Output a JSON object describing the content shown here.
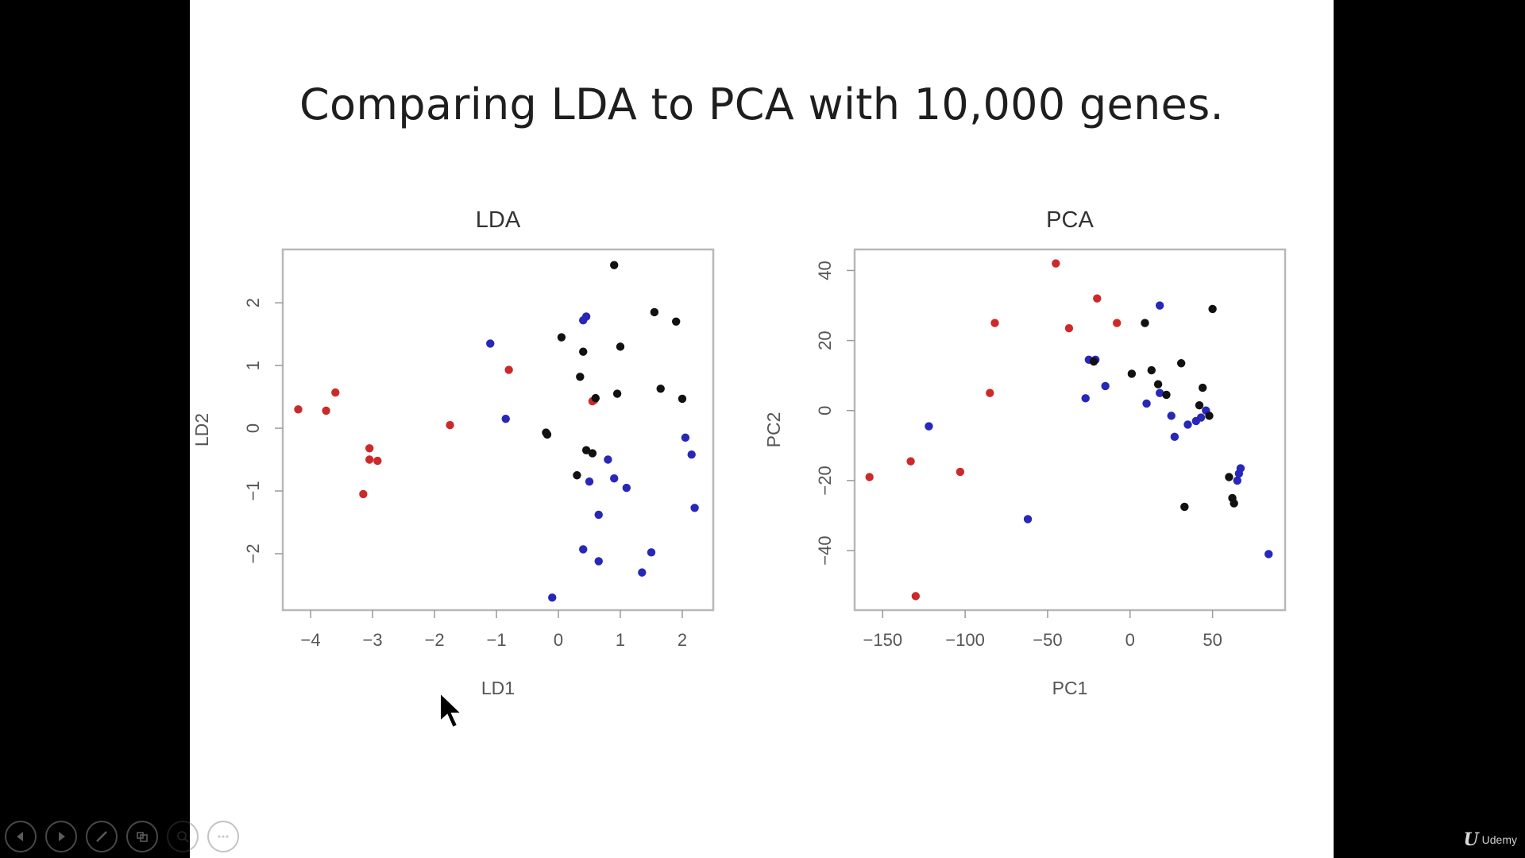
{
  "slide": {
    "title": "Comparing LDA to PCA with 10,000 genes."
  },
  "colors": {
    "red": "#cc2a2a",
    "blue": "#2727b8",
    "black": "#111111",
    "frame": "#b8b8b8",
    "background": "#000000",
    "slide": "#ffffff"
  },
  "toolbar": {
    "buttons": [
      {
        "icon": "previous-icon"
      },
      {
        "icon": "next-icon"
      },
      {
        "icon": "pen-icon"
      },
      {
        "icon": "slides-icon"
      },
      {
        "icon": "zoom-icon"
      },
      {
        "icon": "more-icon"
      }
    ]
  },
  "brand": {
    "glyph": "U",
    "label": "Udemy"
  },
  "chart_data": [
    {
      "type": "scatter",
      "title": "LDA",
      "xlabel": "LD1",
      "ylabel": "LD2",
      "xlim": [
        -4.45,
        2.5
      ],
      "ylim": [
        -2.9,
        2.85
      ],
      "xticks": [
        -4,
        -3,
        -2,
        -1,
        0,
        1,
        2
      ],
      "yticks": [
        -2,
        -1,
        0,
        1,
        2
      ],
      "grid": false,
      "series": [
        {
          "color": "red",
          "points": [
            [
              -4.2,
              0.3
            ],
            [
              -3.75,
              0.28
            ],
            [
              -3.6,
              0.57
            ],
            [
              -3.05,
              -0.32
            ],
            [
              -3.05,
              -0.5
            ],
            [
              -2.92,
              -0.52
            ],
            [
              -3.15,
              -1.05
            ],
            [
              -1.75,
              0.05
            ],
            [
              -0.8,
              0.93
            ],
            [
              0.55,
              0.43
            ],
            [
              0.58,
              0.45
            ]
          ]
        },
        {
          "color": "blue",
          "points": [
            [
              -1.1,
              1.35
            ],
            [
              -0.85,
              0.15
            ],
            [
              0.4,
              1.72
            ],
            [
              0.45,
              1.78
            ],
            [
              2.05,
              -0.15
            ],
            [
              2.15,
              -0.42
            ],
            [
              2.2,
              -1.27
            ],
            [
              0.8,
              -0.5
            ],
            [
              0.9,
              -0.8
            ],
            [
              1.1,
              -0.95
            ],
            [
              0.5,
              -0.85
            ],
            [
              0.65,
              -1.38
            ],
            [
              0.4,
              -1.93
            ],
            [
              0.65,
              -2.12
            ],
            [
              1.5,
              -1.98
            ],
            [
              1.35,
              -2.3
            ],
            [
              -0.1,
              -2.7
            ]
          ]
        },
        {
          "color": "black",
          "points": [
            [
              0.9,
              2.6
            ],
            [
              0.05,
              1.45
            ],
            [
              0.4,
              1.22
            ],
            [
              1.0,
              1.3
            ],
            [
              1.55,
              1.85
            ],
            [
              1.9,
              1.7
            ],
            [
              0.35,
              0.82
            ],
            [
              0.95,
              0.55
            ],
            [
              0.6,
              0.48
            ],
            [
              1.65,
              0.63
            ],
            [
              2.0,
              0.47
            ],
            [
              -0.2,
              -0.07
            ],
            [
              -0.18,
              -0.1
            ],
            [
              0.45,
              -0.35
            ],
            [
              0.55,
              -0.4
            ],
            [
              0.3,
              -0.75
            ]
          ]
        }
      ]
    },
    {
      "type": "scatter",
      "title": "PCA",
      "xlabel": "PC1",
      "ylabel": "PC2",
      "xlim": [
        -167,
        94
      ],
      "ylim": [
        -57,
        46
      ],
      "xticks": [
        -150,
        -100,
        -50,
        0,
        50
      ],
      "yticks": [
        -40,
        -20,
        0,
        20,
        40
      ],
      "grid": false,
      "series": [
        {
          "color": "red",
          "points": [
            [
              -45,
              42
            ],
            [
              -20,
              32
            ],
            [
              -82,
              25
            ],
            [
              -37,
              23.5
            ],
            [
              -8,
              25
            ],
            [
              -85,
              5
            ],
            [
              -133,
              -14.5
            ],
            [
              -158,
              -19
            ],
            [
              -103,
              -17.5
            ],
            [
              -130,
              -53
            ]
          ]
        },
        {
          "color": "blue",
          "points": [
            [
              18,
              30
            ],
            [
              -25,
              14.5
            ],
            [
              -21,
              14.5
            ],
            [
              -15,
              7
            ],
            [
              -27,
              3.5
            ],
            [
              10,
              2
            ],
            [
              18,
              5
            ],
            [
              25,
              -1.5
            ],
            [
              27,
              -7.5
            ],
            [
              35,
              -4
            ],
            [
              40,
              -3
            ],
            [
              43,
              -2
            ],
            [
              46,
              0
            ],
            [
              -122,
              -4.5
            ],
            [
              -62,
              -31
            ],
            [
              65,
              -20
            ],
            [
              66,
              -18
            ],
            [
              67,
              -16.5
            ],
            [
              84,
              -41
            ]
          ]
        },
        {
          "color": "black",
          "points": [
            [
              50,
              29
            ],
            [
              9,
              25
            ],
            [
              -22,
              14
            ],
            [
              1,
              10.5
            ],
            [
              13,
              11.5
            ],
            [
              31,
              13.5
            ],
            [
              17,
              7.5
            ],
            [
              22,
              4.5
            ],
            [
              44,
              6.5
            ],
            [
              42,
              1.5
            ],
            [
              48,
              -1.5
            ],
            [
              60,
              -19
            ],
            [
              62,
              -25
            ],
            [
              63,
              -26.5
            ],
            [
              33,
              -27.5
            ]
          ]
        }
      ]
    }
  ]
}
